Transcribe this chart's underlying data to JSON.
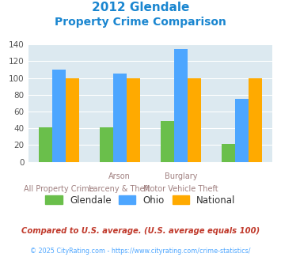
{
  "title_line1": "2012 Glendale",
  "title_line2": "Property Crime Comparison",
  "top_labels": [
    "",
    "Arson",
    "Burglary",
    ""
  ],
  "bottom_labels": [
    "All Property Crime",
    "Larceny & Theft",
    "Motor Vehicle Theft",
    ""
  ],
  "glendale": [
    41,
    41,
    49,
    21
  ],
  "ohio": [
    110,
    105,
    134,
    75
  ],
  "national": [
    100,
    100,
    100,
    100
  ],
  "glendale_color": "#6abf4b",
  "ohio_color": "#4da6ff",
  "national_color": "#ffaa00",
  "ylim": [
    0,
    140
  ],
  "yticks": [
    0,
    20,
    40,
    60,
    80,
    100,
    120,
    140
  ],
  "bg_color": "#dce9f0",
  "title_color": "#1a86d0",
  "xlabel_color": "#a08080",
  "footer_note": "Compared to U.S. average. (U.S. average equals 100)",
  "copyright": "© 2025 CityRating.com - https://www.cityrating.com/crime-statistics/",
  "legend_labels": [
    "Glendale",
    "Ohio",
    "National"
  ],
  "bar_width": 0.22
}
